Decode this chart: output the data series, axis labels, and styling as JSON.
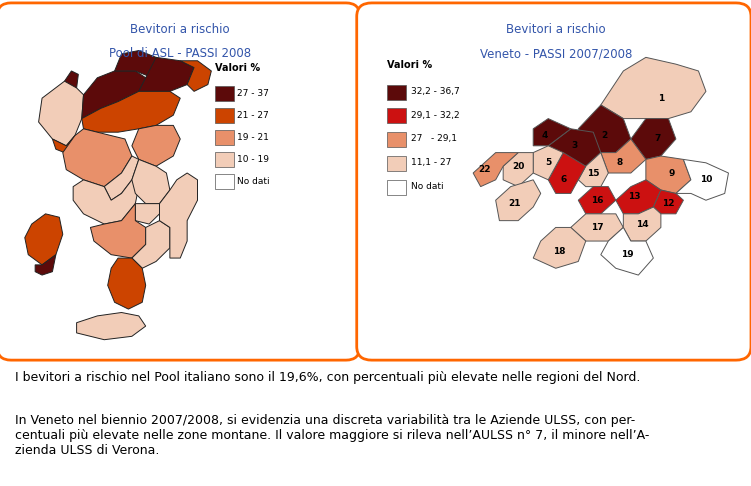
{
  "title_left_line1": "Bevitori a rischio",
  "title_left_line2": "Pool di ASL - PASSI 2008",
  "title_right_line1": "Bevitori a rischio",
  "title_right_line2": "Veneto - PASSI 2007/2008",
  "title_color": "#3355aa",
  "legend_title": "Valori %",
  "legend_left": [
    {
      "label": "27 - 37",
      "color": "#5c0a0a"
    },
    {
      "label": "21 - 27",
      "color": "#cc4400"
    },
    {
      "label": "19 - 21",
      "color": "#e8906a"
    },
    {
      "label": "10 - 19",
      "color": "#f2cdb8"
    },
    {
      "label": "No dati",
      "color": "#ffffff"
    }
  ],
  "legend_right": [
    {
      "label": "32,2 - 36,7",
      "color": "#5c0a0a"
    },
    {
      "label": "29,1 - 32,2",
      "color": "#cc1111"
    },
    {
      "label": "27   - 29,1",
      "color": "#e8906a"
    },
    {
      "label": "11,1 - 27",
      "color": "#f2cdb8"
    },
    {
      "label": "No dati",
      "color": "#ffffff"
    }
  ],
  "box_color": "#ff6600",
  "background_color": "#ffffff",
  "text_line1": "I bevitori a rischio nel Pool italiano sono il 19,6%, con percentuali più elevate nelle regioni del Nord.",
  "text_line2": "In Veneto nel biennio 2007/2008, si evidenzia una discreta variabilità tra le Aziende ULSS, con per-\ncentuali più elevate nelle zone montane. Il valore maggiore si rileva nell’AULSS n° 7, il minore nell’A-\nzienda ULSS di Verona.",
  "text_fontsize": 9.0,
  "veneto_colors": {
    "1": "#f2cdb8",
    "2": "#5c0a0a",
    "3": "#5c0a0a",
    "4": "#5c0a0a",
    "5": "#f2cdb8",
    "6": "#cc1111",
    "7": "#5c0a0a",
    "8": "#e8906a",
    "9": "#e8906a",
    "10": "#ffffff",
    "12": "#cc1111",
    "13": "#cc1111",
    "14": "#f2cdb8",
    "15": "#f2cdb8",
    "16": "#cc1111",
    "17": "#f2cdb8",
    "18": "#f2cdb8",
    "19": "#ffffff",
    "20": "#f2cdb8",
    "21": "#f2cdb8",
    "22": "#e8906a"
  }
}
